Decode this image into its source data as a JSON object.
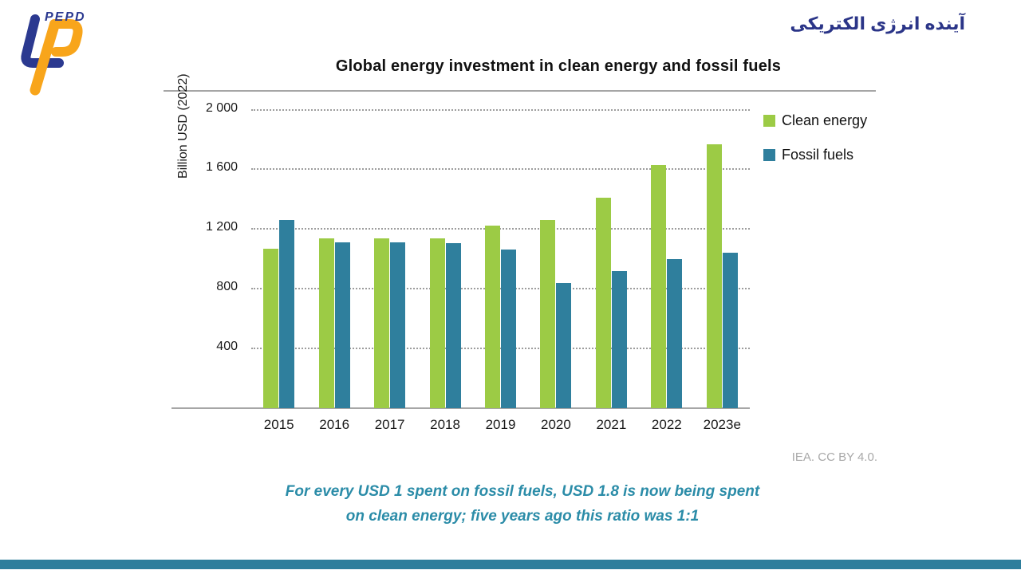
{
  "header": {
    "logo_text": "PEPD",
    "farsi_title": "آینده انرژی الکتریکی",
    "logo_colors": {
      "blue": "#2b3990",
      "orange": "#f8a51b"
    }
  },
  "chart": {
    "title": "Global energy investment in clean energy and fossil fuels",
    "source": "IEA. CC BY 4.0."
  },
  "chart_data": {
    "type": "bar",
    "title": "Global energy investment in clean energy and fossil fuels",
    "xlabel": "",
    "ylabel": "Billion USD (2022)",
    "categories": [
      "2015",
      "2016",
      "2017",
      "2018",
      "2019",
      "2020",
      "2021",
      "2022",
      "2023e"
    ],
    "series": [
      {
        "name": "Clean energy",
        "color": "#9ccb45",
        "values": [
          1070,
          1135,
          1135,
          1140,
          1225,
          1260,
          1410,
          1630,
          1770
        ]
      },
      {
        "name": "Fossil fuels",
        "color": "#2f7f9d",
        "values": [
          1260,
          1110,
          1110,
          1105,
          1065,
          840,
          920,
          1000,
          1040
        ]
      }
    ],
    "yticks": [
      {
        "value": 400,
        "label": "400"
      },
      {
        "value": 800,
        "label": "800"
      },
      {
        "value": 1200,
        "label": "1 200"
      },
      {
        "value": 1600,
        "label": "1 600"
      },
      {
        "value": 2000,
        "label": "2 000"
      }
    ],
    "ylim": [
      0,
      2130
    ],
    "grid": "horizontal-dotted",
    "legend_position": "top-right"
  },
  "caption": {
    "line1": "For every USD 1 spent on fossil fuels, USD 1.8 is now being spent",
    "line2": "on clean energy; five years ago this ratio was 1:1"
  },
  "footer": {
    "bar_color": "#2e7e9c"
  }
}
